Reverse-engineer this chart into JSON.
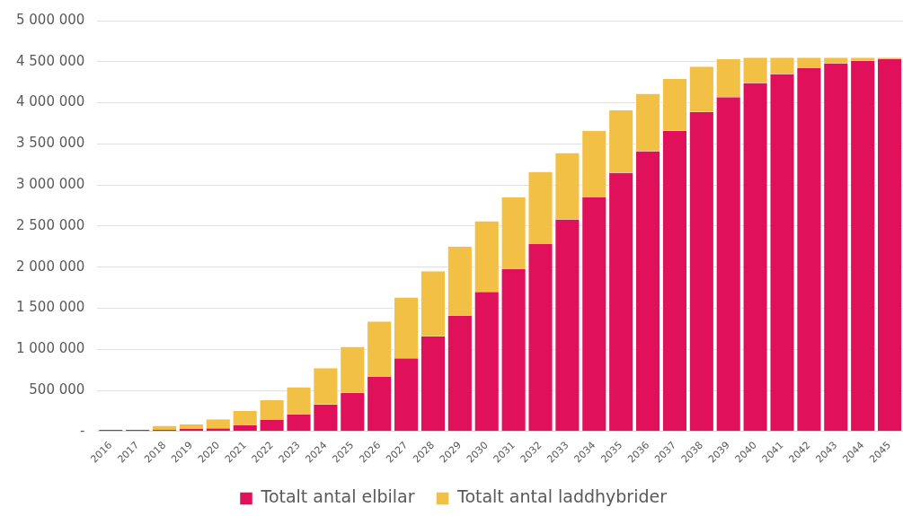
{
  "chart_data": {
    "type": "bar",
    "stacked": true,
    "categories": [
      "2016",
      "2017",
      "2018",
      "2019",
      "2020",
      "2021",
      "2022",
      "2023",
      "2024",
      "2025",
      "2026",
      "2027",
      "2028",
      "2029",
      "2030",
      "2031",
      "2032",
      "2033",
      "2034",
      "2035",
      "2036",
      "2037",
      "2038",
      "2039",
      "2040",
      "2041",
      "2042",
      "2043",
      "2044",
      "2045"
    ],
    "series": [
      {
        "name": "Totalt antal elbilar",
        "color": "#e0115a",
        "values": [
          20000,
          20000,
          20000,
          30000,
          40000,
          80000,
          140000,
          210000,
          330000,
          470000,
          670000,
          890000,
          1160000,
          1410000,
          1700000,
          1980000,
          2280000,
          2580000,
          2850000,
          3150000,
          3410000,
          3660000,
          3890000,
          4070000,
          4240000,
          4350000,
          4420000,
          4480000,
          4510000,
          4530000
        ]
      },
      {
        "name": "Totalt antal laddhybrider",
        "color": "#f2c045",
        "values": [
          0,
          0,
          50000,
          60000,
          110000,
          170000,
          240000,
          330000,
          440000,
          560000,
          670000,
          740000,
          790000,
          840000,
          860000,
          870000,
          880000,
          810000,
          810000,
          760000,
          700000,
          630000,
          550000,
          460000,
          310000,
          200000,
          130000,
          70000,
          40000,
          20000
        ]
      }
    ],
    "ylim": [
      0,
      5000000
    ],
    "yticks": [
      {
        "value": 0,
        "label": "-"
      },
      {
        "value": 500000,
        "label": "500 000"
      },
      {
        "value": 1000000,
        "label": "1 000 000"
      },
      {
        "value": 1500000,
        "label": "1 500 000"
      },
      {
        "value": 2000000,
        "label": "2 000 000"
      },
      {
        "value": 2500000,
        "label": "2 500 000"
      },
      {
        "value": 3000000,
        "label": "3 000 000"
      },
      {
        "value": 3500000,
        "label": "3 500 000"
      },
      {
        "value": 4000000,
        "label": "4 000 000"
      },
      {
        "value": 4500000,
        "label": "4 500 000"
      },
      {
        "value": 5000000,
        "label": "5 000 000"
      }
    ],
    "grid": "y",
    "legend": "bottom"
  }
}
